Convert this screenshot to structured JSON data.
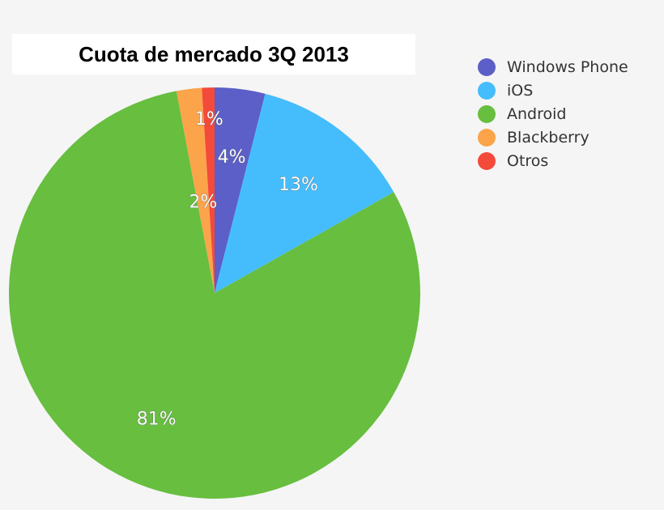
{
  "chart_data": {
    "type": "pie",
    "title": "Cuota de mercado 3Q 2013",
    "start_angle": "top",
    "direction": "clockwise",
    "legend_position": "right",
    "slices": [
      {
        "name": "Windows Phone",
        "value": 4,
        "label": "4%",
        "color": "#5b5fc7"
      },
      {
        "name": "iOS",
        "value": 13,
        "label": "13%",
        "color": "#45bdfd"
      },
      {
        "name": "Android",
        "value": 81,
        "label": "81%",
        "color": "#67be3f"
      },
      {
        "name": "Blackberry",
        "value": 2,
        "label": "2%",
        "color": "#fca44a"
      },
      {
        "name": "Otros",
        "value": 1,
        "label": "1%",
        "color": "#f44a3a"
      }
    ]
  }
}
